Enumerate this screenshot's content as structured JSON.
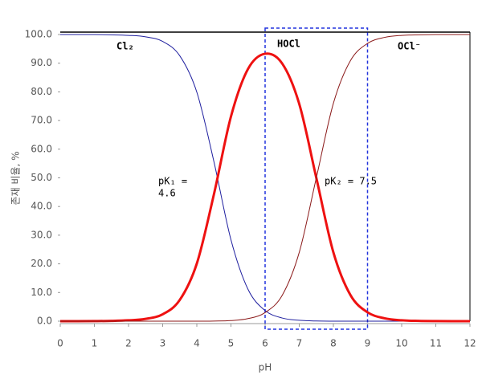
{
  "chart_data": {
    "type": "line",
    "x_label": "pH",
    "y_label": "존재 비율, %",
    "x": [
      0,
      0.5,
      1,
      1.5,
      2,
      2.5,
      3,
      3.5,
      4,
      4.5,
      5,
      5.5,
      6,
      6.5,
      7,
      7.5,
      8,
      8.5,
      9,
      9.5,
      10,
      10.5,
      11,
      11.5,
      12
    ],
    "series": [
      {
        "name": "Cl₂",
        "color": "#1f1f9f",
        "width": 1,
        "values": [
          100,
          100,
          100,
          99.9,
          99.7,
          99.2,
          97.6,
          92.6,
          79.9,
          55.7,
          28.4,
          11.1,
          3.7,
          1.1,
          0.3,
          0.06,
          0.01,
          0,
          0,
          0,
          0,
          0,
          0,
          0,
          0
        ]
      },
      {
        "name": "HOCl",
        "color": "#ee1111",
        "width": 3,
        "values": [
          0,
          0,
          0.03,
          0.1,
          0.3,
          0.8,
          2.4,
          7.4,
          20.1,
          44.2,
          71.4,
          88.0,
          93.3,
          89.9,
          75.8,
          50.0,
          24.0,
          9.1,
          3.1,
          1.0,
          0.3,
          0.1,
          0.03,
          0,
          0
        ]
      },
      {
        "name": "OCl⁻",
        "color": "#8b1a1a",
        "width": 1,
        "values": [
          0,
          0,
          0,
          0,
          0,
          0,
          0,
          0,
          0,
          0.04,
          0.2,
          0.9,
          3.0,
          9.0,
          24.0,
          50.0,
          76.0,
          90.9,
          96.9,
          99.0,
          99.7,
          99.9,
          100,
          100,
          100
        ]
      }
    ],
    "annotations": [
      {
        "text": "pK₁ =",
        "x": 4.6,
        "y": 50
      },
      {
        "text": "4.6",
        "x": 4.6,
        "y": 50
      },
      {
        "text": "pK₂ = 7.5",
        "x": 7.5,
        "y": 50
      }
    ],
    "highlight_x": [
      6,
      9
    ],
    "xlim": [
      0,
      12
    ],
    "xticks": [
      0,
      1,
      2,
      3,
      4,
      5,
      6,
      7,
      8,
      9,
      10,
      11,
      12
    ],
    "ylim": [
      0,
      100
    ],
    "yticks": [
      {
        "value": 0,
        "label": "0.0"
      },
      {
        "value": 10,
        "label": "10.0"
      },
      {
        "value": 20,
        "label": "20.0"
      },
      {
        "value": 30,
        "label": "30.0"
      },
      {
        "value": 40,
        "label": "40.0"
      },
      {
        "value": 50,
        "label": "50.0"
      },
      {
        "value": 60,
        "label": "60.0"
      },
      {
        "value": 70,
        "label": "70.0"
      },
      {
        "value": 80,
        "label": "80.0"
      },
      {
        "value": 90,
        "label": "90.0"
      },
      {
        "value": 100,
        "label": "100.0"
      }
    ]
  }
}
